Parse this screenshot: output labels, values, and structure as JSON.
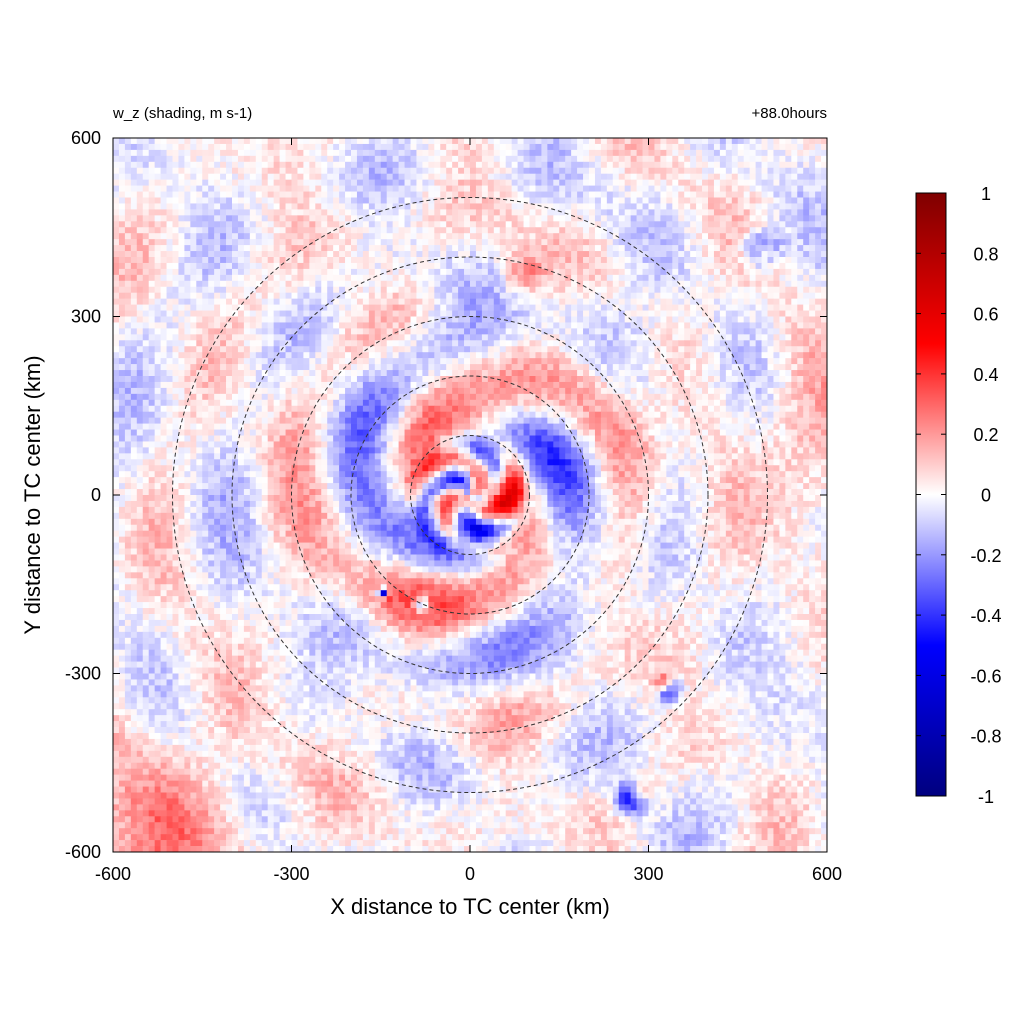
{
  "chart_data": {
    "type": "heatmap",
    "title": "w_z (shading, m s-1)",
    "time_label": "+88.0hours",
    "xlabel": "X distance to TC center (km)",
    "ylabel": "Y distance to TC center (km)",
    "xlim": [
      -600,
      600
    ],
    "ylim": [
      -600,
      600
    ],
    "xticks": [
      "-600",
      "-300",
      "0",
      "300",
      "600"
    ],
    "yticks": [
      "600",
      "300",
      "0",
      "-300",
      "-600"
    ],
    "xtick_values": [
      -600,
      -300,
      0,
      300,
      600
    ],
    "ytick_values": [
      600,
      300,
      0,
      -300,
      -600
    ],
    "colorbar": {
      "min": -1,
      "max": 1,
      "tick_labels": [
        "1",
        "0.8",
        "0.6",
        "0.4",
        "0.2",
        "0",
        "-0.2",
        "-0.4",
        "-0.6",
        "-0.8",
        "-1"
      ],
      "tick_values": [
        1,
        0.8,
        0.6,
        0.4,
        0.2,
        0,
        -0.2,
        -0.4,
        -0.6,
        -0.8,
        -1
      ],
      "colors": [
        "#00007f",
        "#0000ff",
        "#ffffff",
        "#ff0000",
        "#7f0000"
      ]
    },
    "reference_circle_radii_km": [
      100,
      200,
      300,
      400,
      500
    ],
    "grid": false,
    "legend": "colorbar-right"
  }
}
